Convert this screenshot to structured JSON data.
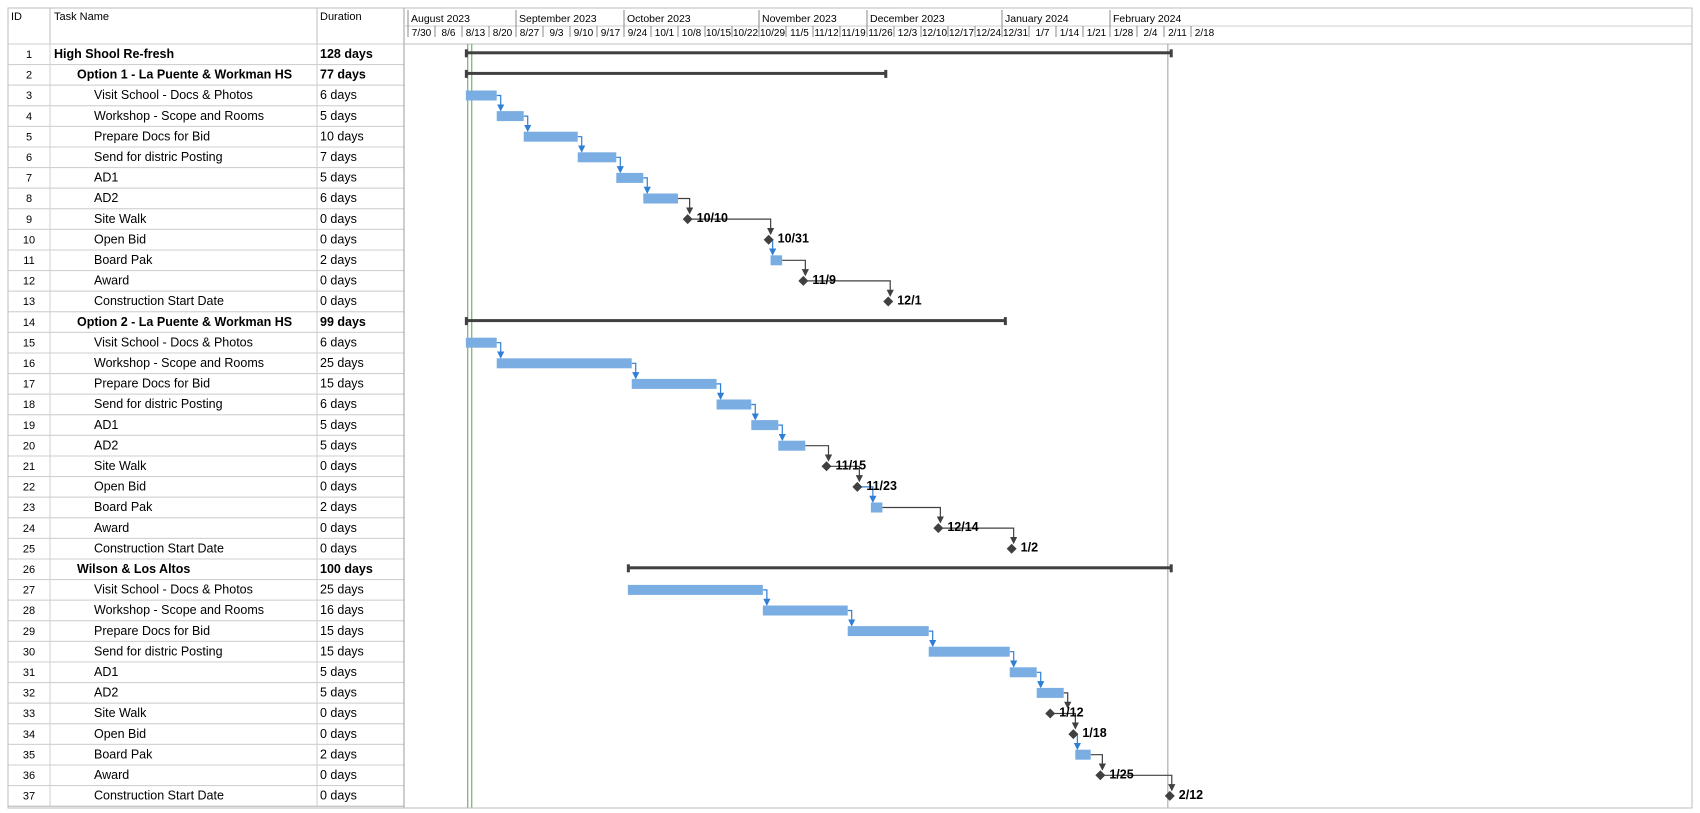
{
  "table": {
    "headers": {
      "id": "ID",
      "name": "Task Name",
      "duration": "Duration"
    },
    "rows": [
      {
        "id": "1",
        "name": "High Shool Re-fresh",
        "duration": "128 days",
        "level": 0,
        "summary": true
      },
      {
        "id": "2",
        "name": "Option 1 - La Puente & Workman HS",
        "duration": "77 days",
        "level": 1,
        "summary": true
      },
      {
        "id": "3",
        "name": "Visit School - Docs & Photos",
        "duration": "6 days",
        "level": 2,
        "summary": false
      },
      {
        "id": "4",
        "name": "Workshop - Scope and Rooms",
        "duration": "5 days",
        "level": 2,
        "summary": false
      },
      {
        "id": "5",
        "name": "Prepare Docs for Bid",
        "duration": "10 days",
        "level": 2,
        "summary": false
      },
      {
        "id": "6",
        "name": "Send for distric Posting",
        "duration": "7 days",
        "level": 2,
        "summary": false
      },
      {
        "id": "7",
        "name": "AD1",
        "duration": "5 days",
        "level": 2,
        "summary": false
      },
      {
        "id": "8",
        "name": "AD2",
        "duration": "6 days",
        "level": 2,
        "summary": false
      },
      {
        "id": "9",
        "name": "Site Walk",
        "duration": "0 days",
        "level": 2,
        "summary": false
      },
      {
        "id": "10",
        "name": "Open Bid",
        "duration": "0 days",
        "level": 2,
        "summary": false
      },
      {
        "id": "11",
        "name": "Board Pak",
        "duration": "2 days",
        "level": 2,
        "summary": false
      },
      {
        "id": "12",
        "name": "Award",
        "duration": "0 days",
        "level": 2,
        "summary": false
      },
      {
        "id": "13",
        "name": "Construction Start Date",
        "duration": "0 days",
        "level": 2,
        "summary": false
      },
      {
        "id": "14",
        "name": "Option 2 - La Puente & Workman HS",
        "duration": "99 days",
        "level": 1,
        "summary": true
      },
      {
        "id": "15",
        "name": "Visit School - Docs & Photos",
        "duration": "6 days",
        "level": 2,
        "summary": false
      },
      {
        "id": "16",
        "name": "Workshop - Scope and Rooms",
        "duration": "25 days",
        "level": 2,
        "summary": false
      },
      {
        "id": "17",
        "name": "Prepare Docs for Bid",
        "duration": "15 days",
        "level": 2,
        "summary": false
      },
      {
        "id": "18",
        "name": "Send for distric Posting",
        "duration": "6 days",
        "level": 2,
        "summary": false
      },
      {
        "id": "19",
        "name": "AD1",
        "duration": "5 days",
        "level": 2,
        "summary": false
      },
      {
        "id": "20",
        "name": "AD2",
        "duration": "5 days",
        "level": 2,
        "summary": false
      },
      {
        "id": "21",
        "name": "Site Walk",
        "duration": "0 days",
        "level": 2,
        "summary": false
      },
      {
        "id": "22",
        "name": "Open Bid",
        "duration": "0 days",
        "level": 2,
        "summary": false
      },
      {
        "id": "23",
        "name": "Board Pak",
        "duration": "2 days",
        "level": 2,
        "summary": false
      },
      {
        "id": "24",
        "name": "Award",
        "duration": "0 days",
        "level": 2,
        "summary": false
      },
      {
        "id": "25",
        "name": "Construction Start Date",
        "duration": "0 days",
        "level": 2,
        "summary": false
      },
      {
        "id": "26",
        "name": "Wilson & Los Altos",
        "duration": "100 days",
        "level": 1,
        "summary": true
      },
      {
        "id": "27",
        "name": "Visit School - Docs & Photos",
        "duration": "25 days",
        "level": 2,
        "summary": false
      },
      {
        "id": "28",
        "name": "Workshop - Scope and Rooms",
        "duration": "16 days",
        "level": 2,
        "summary": false
      },
      {
        "id": "29",
        "name": "Prepare Docs for Bid",
        "duration": "15 days",
        "level": 2,
        "summary": false
      },
      {
        "id": "30",
        "name": "Send for distric Posting",
        "duration": "15 days",
        "level": 2,
        "summary": false
      },
      {
        "id": "31",
        "name": "AD1",
        "duration": "5 days",
        "level": 2,
        "summary": false
      },
      {
        "id": "32",
        "name": "AD2",
        "duration": "5 days",
        "level": 2,
        "summary": false
      },
      {
        "id": "33",
        "name": "Site Walk",
        "duration": "0 days",
        "level": 2,
        "summary": false
      },
      {
        "id": "34",
        "name": "Open Bid",
        "duration": "0 days",
        "level": 2,
        "summary": false
      },
      {
        "id": "35",
        "name": "Board Pak",
        "duration": "2 days",
        "level": 2,
        "summary": false
      },
      {
        "id": "36",
        "name": "Award",
        "duration": "0 days",
        "level": 2,
        "summary": false
      },
      {
        "id": "37",
        "name": "Construction Start Date",
        "duration": "0 days",
        "level": 2,
        "summary": false
      }
    ]
  },
  "timescale": {
    "months": [
      {
        "label": "August 2023",
        "start": "2023-07-30"
      },
      {
        "label": "September 2023",
        "start": "2023-08-27"
      },
      {
        "label": "October 2023",
        "start": "2023-09-24"
      },
      {
        "label": "November 2023",
        "start": "2023-10-29"
      },
      {
        "label": "December 2023",
        "start": "2023-11-26"
      },
      {
        "label": "January 2024",
        "start": "2023-12-31"
      },
      {
        "label": "February 2024",
        "start": "2024-01-28"
      }
    ],
    "weeks": [
      "7/30",
      "8/6",
      "8/13",
      "8/20",
      "8/27",
      "9/3",
      "9/10",
      "9/17",
      "9/24",
      "10/1",
      "10/8",
      "10/15",
      "10/22",
      "10/29",
      "11/5",
      "11/12",
      "11/19",
      "11/26",
      "12/3",
      "12/10",
      "12/17",
      "12/24",
      "12/31",
      "1/7",
      "1/14",
      "1/21",
      "1/28",
      "2/4",
      "2/11",
      "2/18"
    ],
    "axis_start": "2023-07-30",
    "today": "2023-08-15",
    "project_finish": "2024-02-12"
  },
  "colors": {
    "task_bar": "#7aaee3",
    "link_arrow": "#2f7fd6",
    "summary_bar": "#404040",
    "milestone": "#404040",
    "today_line": "#7fb37f",
    "grid_line": "#c8c8c8"
  },
  "chart_data": {
    "type": "gantt",
    "tasks": [
      {
        "id": "1",
        "start": "2023-08-14",
        "finish": "2024-02-12",
        "kind": "summary"
      },
      {
        "id": "2",
        "start": "2023-08-14",
        "finish": "2023-11-30",
        "kind": "summary"
      },
      {
        "id": "3",
        "start": "2023-08-14",
        "finish": "2023-08-21",
        "kind": "task",
        "pred": null
      },
      {
        "id": "4",
        "start": "2023-08-22",
        "finish": "2023-08-28",
        "kind": "task",
        "pred": "3"
      },
      {
        "id": "5",
        "start": "2023-08-29",
        "finish": "2023-09-11",
        "kind": "task",
        "pred": "4"
      },
      {
        "id": "6",
        "start": "2023-09-12",
        "finish": "2023-09-21",
        "kind": "task",
        "pred": "5"
      },
      {
        "id": "7",
        "start": "2023-09-22",
        "finish": "2023-09-28",
        "kind": "task",
        "pred": "6"
      },
      {
        "id": "8",
        "start": "2023-09-29",
        "finish": "2023-10-07",
        "kind": "task",
        "pred": "7"
      },
      {
        "id": "9",
        "date": "2023-10-10",
        "kind": "milestone",
        "label": "10/10",
        "pred": "8"
      },
      {
        "id": "10",
        "date": "2023-10-31",
        "kind": "milestone",
        "label": "10/31",
        "pred": "9"
      },
      {
        "id": "11",
        "start": "2023-11-01",
        "finish": "2023-11-03",
        "kind": "task",
        "pred": "10"
      },
      {
        "id": "12",
        "date": "2023-11-09",
        "kind": "milestone",
        "label": "11/9",
        "pred": "11"
      },
      {
        "id": "13",
        "date": "2023-12-01",
        "kind": "milestone",
        "label": "12/1",
        "pred": "12"
      },
      {
        "id": "14",
        "start": "2023-08-14",
        "finish": "2023-12-31",
        "kind": "summary"
      },
      {
        "id": "15",
        "start": "2023-08-14",
        "finish": "2023-08-21",
        "kind": "task",
        "pred": null
      },
      {
        "id": "16",
        "start": "2023-08-22",
        "finish": "2023-09-25",
        "kind": "task",
        "pred": "15"
      },
      {
        "id": "17",
        "start": "2023-09-26",
        "finish": "2023-10-17",
        "kind": "task",
        "pred": "16"
      },
      {
        "id": "18",
        "start": "2023-10-18",
        "finish": "2023-10-26",
        "kind": "task",
        "pred": "17"
      },
      {
        "id": "19",
        "start": "2023-10-27",
        "finish": "2023-11-02",
        "kind": "task",
        "pred": "18"
      },
      {
        "id": "20",
        "start": "2023-11-03",
        "finish": "2023-11-09",
        "kind": "task",
        "pred": "19"
      },
      {
        "id": "21",
        "date": "2023-11-15",
        "kind": "milestone",
        "label": "11/15",
        "pred": "20"
      },
      {
        "id": "22",
        "date": "2023-11-23",
        "kind": "milestone",
        "label": "11/23",
        "pred": "21"
      },
      {
        "id": "23",
        "start": "2023-11-27",
        "finish": "2023-11-29",
        "kind": "task",
        "pred": "22"
      },
      {
        "id": "24",
        "date": "2023-12-14",
        "kind": "milestone",
        "label": "12/14",
        "pred": "23"
      },
      {
        "id": "25",
        "date": "2024-01-02",
        "kind": "milestone",
        "label": "1/2",
        "pred": "24"
      },
      {
        "id": "26",
        "start": "2023-09-25",
        "finish": "2024-02-12",
        "kind": "summary"
      },
      {
        "id": "27",
        "start": "2023-09-25",
        "finish": "2023-10-29",
        "kind": "task",
        "pred": null
      },
      {
        "id": "28",
        "start": "2023-10-30",
        "finish": "2023-11-20",
        "kind": "task",
        "pred": "27"
      },
      {
        "id": "29",
        "start": "2023-11-21",
        "finish": "2023-12-11",
        "kind": "task",
        "pred": "28"
      },
      {
        "id": "30",
        "start": "2023-12-12",
        "finish": "2024-01-01",
        "kind": "task",
        "pred": "29"
      },
      {
        "id": "31",
        "start": "2024-01-02",
        "finish": "2024-01-08",
        "kind": "task",
        "pred": "30"
      },
      {
        "id": "32",
        "start": "2024-01-09",
        "finish": "2024-01-15",
        "kind": "task",
        "pred": "31"
      },
      {
        "id": "33",
        "date": "2024-01-12",
        "kind": "milestone",
        "label": "1/12",
        "pred": "32"
      },
      {
        "id": "34",
        "date": "2024-01-18",
        "kind": "milestone",
        "label": "1/18",
        "pred": "33"
      },
      {
        "id": "35",
        "start": "2024-01-19",
        "finish": "2024-01-22",
        "kind": "task",
        "pred": "34"
      },
      {
        "id": "36",
        "date": "2024-01-25",
        "kind": "milestone",
        "label": "1/25",
        "pred": "35"
      },
      {
        "id": "37",
        "date": "2024-02-12",
        "kind": "milestone",
        "label": "2/12",
        "pred": "36"
      }
    ]
  }
}
